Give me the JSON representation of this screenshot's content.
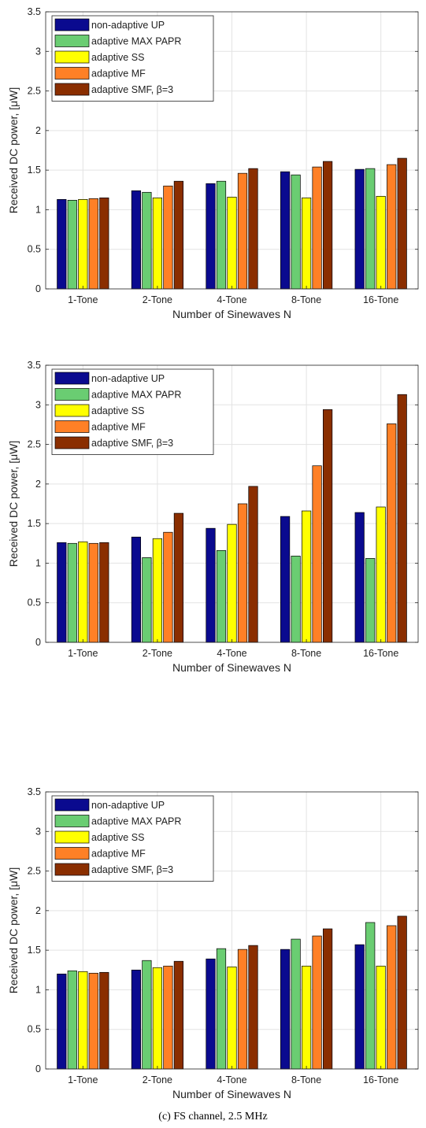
{
  "chart_data": [
    {
      "type": "bar",
      "caption": "",
      "xlabel": "Number of Sinewaves N",
      "ylabel": "Received DC power, [μW]",
      "categories": [
        "1-Tone",
        "2-Tone",
        "4-Tone",
        "8-Tone",
        "16-Tone"
      ],
      "ylim": [
        0,
        3.5
      ],
      "yticks": [
        "0",
        "0.5",
        "1",
        "1.5",
        "2",
        "2.5",
        "3",
        "3.5"
      ],
      "grid": true,
      "legend_position": "top-left",
      "series": [
        {
          "name": "non-adaptive UP",
          "color": "#0a0a8f",
          "values": [
            1.13,
            1.24,
            1.33,
            1.48,
            1.51
          ]
        },
        {
          "name": "adaptive MAX PAPR",
          "color": "#6acd72",
          "values": [
            1.12,
            1.22,
            1.36,
            1.44,
            1.52
          ]
        },
        {
          "name": "adaptive SS",
          "color": "#ffff00",
          "values": [
            1.13,
            1.15,
            1.16,
            1.15,
            1.17
          ]
        },
        {
          "name": "adaptive MF",
          "color": "#ff8026",
          "values": [
            1.14,
            1.3,
            1.46,
            1.54,
            1.57
          ]
        },
        {
          "name": "adaptive SMF, β=3",
          "color": "#8a2e00",
          "values": [
            1.15,
            1.36,
            1.52,
            1.61,
            1.65
          ]
        }
      ]
    },
    {
      "type": "bar",
      "caption": "",
      "xlabel": "Number of Sinewaves N",
      "ylabel": "Received DC power, [μW]",
      "categories": [
        "1-Tone",
        "2-Tone",
        "4-Tone",
        "8-Tone",
        "16-Tone"
      ],
      "ylim": [
        0,
        3.5
      ],
      "yticks": [
        "0",
        "0.5",
        "1",
        "1.5",
        "2",
        "2.5",
        "3",
        "3.5"
      ],
      "grid": true,
      "legend_position": "top-left",
      "series": [
        {
          "name": "non-adaptive UP",
          "color": "#0a0a8f",
          "values": [
            1.26,
            1.33,
            1.44,
            1.59,
            1.64
          ]
        },
        {
          "name": "adaptive MAX PAPR",
          "color": "#6acd72",
          "values": [
            1.25,
            1.07,
            1.16,
            1.09,
            1.06
          ]
        },
        {
          "name": "adaptive SS",
          "color": "#ffff00",
          "values": [
            1.27,
            1.31,
            1.49,
            1.66,
            1.71
          ]
        },
        {
          "name": "adaptive MF",
          "color": "#ff8026",
          "values": [
            1.25,
            1.39,
            1.75,
            2.23,
            2.76
          ]
        },
        {
          "name": "adaptive SMF, β=3",
          "color": "#8a2e00",
          "values": [
            1.26,
            1.63,
            1.97,
            2.94,
            3.13
          ]
        }
      ]
    },
    {
      "type": "bar",
      "caption": "(c) FS channel, 2.5 MHz",
      "xlabel": "Number of Sinewaves N",
      "ylabel": "Received DC power, [μW]",
      "categories": [
        "1-Tone",
        "2-Tone",
        "4-Tone",
        "8-Tone",
        "16-Tone"
      ],
      "ylim": [
        0,
        3.5
      ],
      "yticks": [
        "0",
        "0.5",
        "1",
        "1.5",
        "2",
        "2.5",
        "3",
        "3.5"
      ],
      "grid": true,
      "legend_position": "top-left",
      "series": [
        {
          "name": "non-adaptive UP",
          "color": "#0a0a8f",
          "values": [
            1.2,
            1.25,
            1.39,
            1.51,
            1.57
          ]
        },
        {
          "name": "adaptive MAX PAPR",
          "color": "#6acd72",
          "values": [
            1.24,
            1.37,
            1.52,
            1.64,
            1.85
          ]
        },
        {
          "name": "adaptive SS",
          "color": "#ffff00",
          "values": [
            1.23,
            1.28,
            1.29,
            1.3,
            1.3
          ]
        },
        {
          "name": "adaptive MF",
          "color": "#ff8026",
          "values": [
            1.21,
            1.3,
            1.51,
            1.68,
            1.81
          ]
        },
        {
          "name": "adaptive SMF, β=3",
          "color": "#8a2e00",
          "values": [
            1.22,
            1.36,
            1.56,
            1.77,
            1.93
          ]
        }
      ]
    }
  ]
}
